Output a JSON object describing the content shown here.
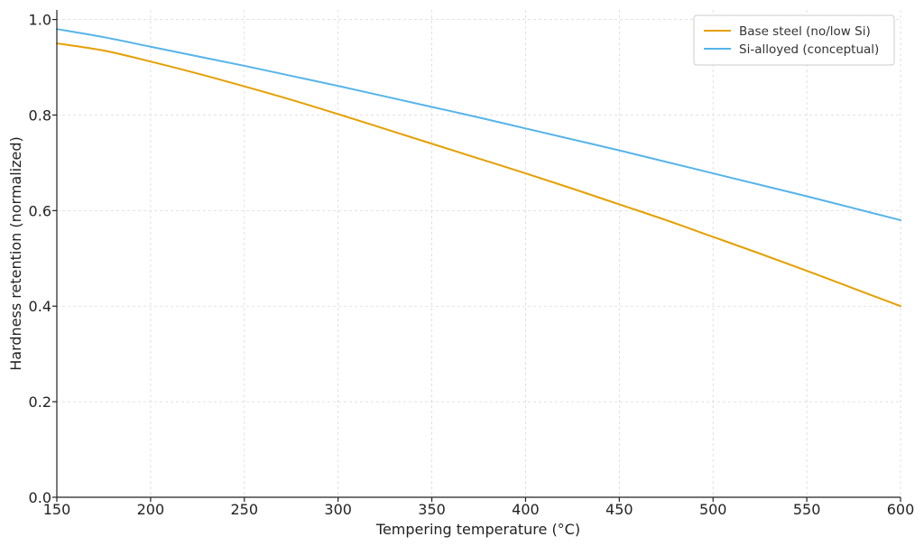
{
  "chart_data": {
    "type": "line",
    "title": "",
    "xlabel": "Tempering temperature (°C)",
    "ylabel": "Hardness retention (normalized)",
    "xlim": [
      150,
      600
    ],
    "ylim": [
      0.0,
      1.02
    ],
    "xticks": [
      150,
      200,
      250,
      300,
      350,
      400,
      450,
      500,
      550,
      600
    ],
    "yticks": [
      0.0,
      0.2,
      0.4,
      0.6,
      0.8,
      1.0
    ],
    "xtick_labels": [
      "150",
      "200",
      "250",
      "300",
      "350",
      "400",
      "450",
      "500",
      "550",
      "600"
    ],
    "ytick_labels": [
      "0.0",
      "0.2",
      "0.4",
      "0.6",
      "0.8",
      "1.0"
    ],
    "grid": true,
    "legend": "top-right",
    "x": [
      150,
      175,
      200,
      225,
      250,
      275,
      300,
      325,
      350,
      375,
      400,
      425,
      450,
      475,
      500,
      525,
      550,
      575,
      600
    ],
    "series": [
      {
        "name": "Base steel (no/low Si)",
        "color": "#e69f00",
        "values": [
          0.95,
          0.935,
          0.912,
          0.887,
          0.86,
          0.832,
          0.802,
          0.771,
          0.74,
          0.709,
          0.678,
          0.646,
          0.613,
          0.58,
          0.545,
          0.51,
          0.474,
          0.437,
          0.4
        ]
      },
      {
        "name": "Si-alloyed (conceptual)",
        "color": "#56b4e9",
        "values": [
          0.98,
          0.963,
          0.943,
          0.923,
          0.903,
          0.882,
          0.861,
          0.839,
          0.817,
          0.795,
          0.772,
          0.749,
          0.726,
          0.702,
          0.678,
          0.654,
          0.63,
          0.605,
          0.58
        ]
      }
    ]
  }
}
